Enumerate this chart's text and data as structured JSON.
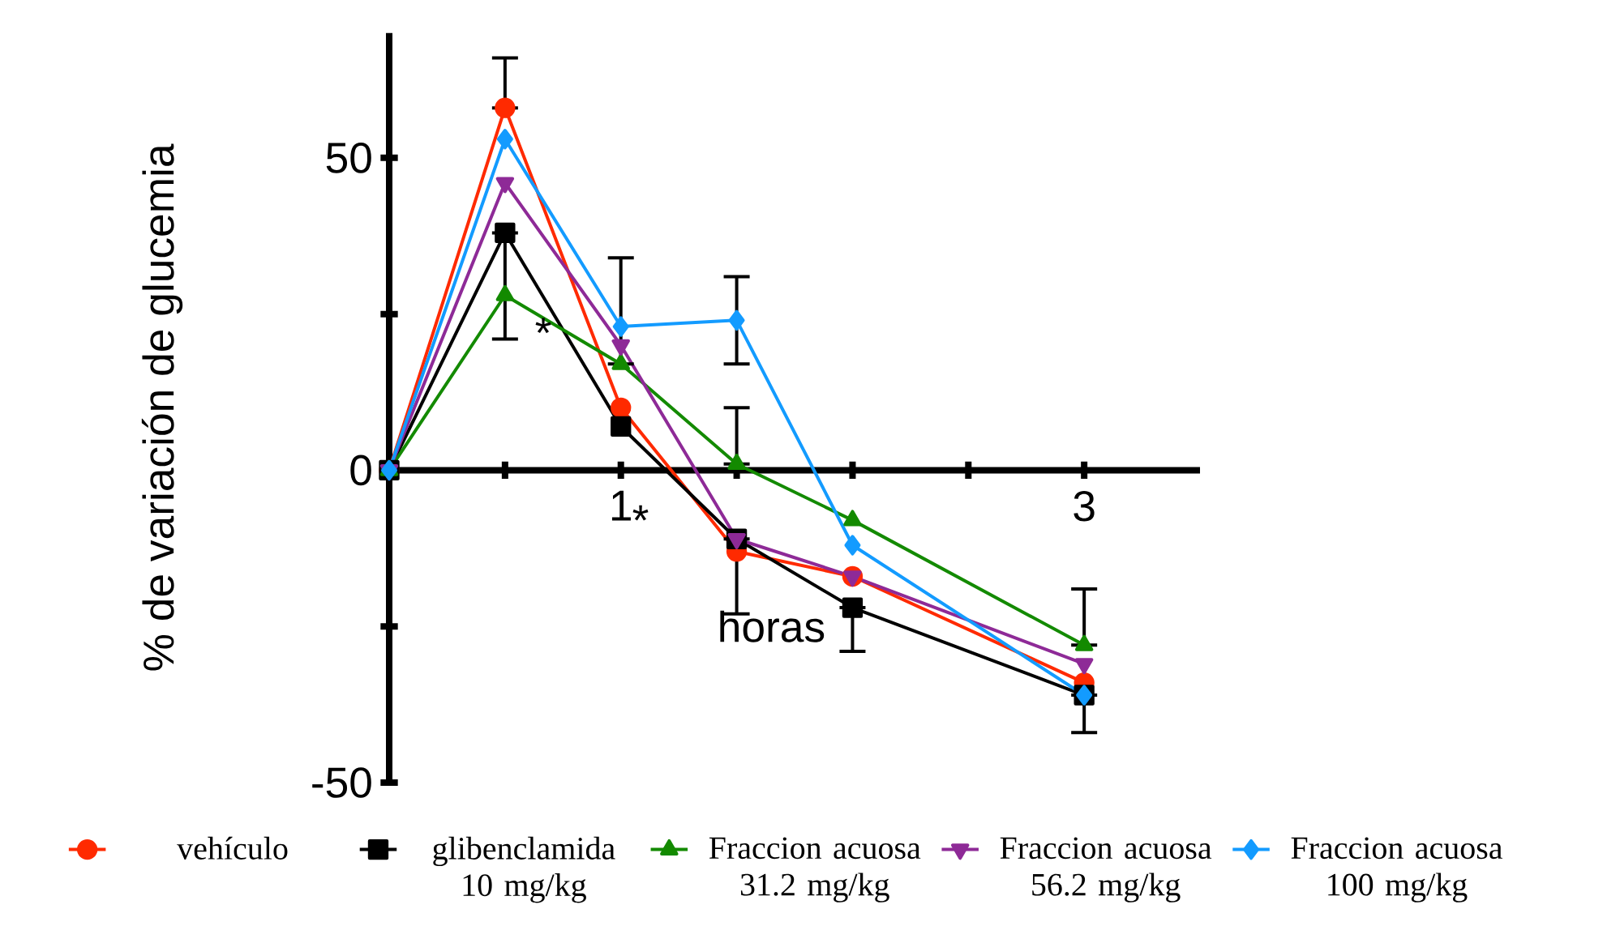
{
  "chart_data": {
    "type": "line",
    "xlabel": "horas",
    "ylabel": "% de variación de glucemia",
    "x": [
      0,
      0.5,
      1,
      1.5,
      2,
      3
    ],
    "xlim": [
      0,
      3.5
    ],
    "ylim": [
      -50,
      70
    ],
    "xticks": [
      {
        "value": 0.5,
        "label": null
      },
      1,
      {
        "value": 1.5,
        "label": null
      },
      {
        "value": 2,
        "label": null
      },
      {
        "value": 2.5,
        "label": null
      },
      3
    ],
    "yticks": [
      -50,
      {
        "value": -25,
        "label": null
      },
      0,
      {
        "value": 25,
        "label": null
      },
      50
    ],
    "legend": "bottom",
    "grid": false,
    "series": [
      {
        "name": "vehículo",
        "color": "#ff2a00",
        "marker": "circle",
        "values": [
          0,
          58,
          10,
          -13,
          -17,
          -34
        ],
        "errors": [
          null,
          [
            58,
            66
          ],
          null,
          null,
          null,
          null
        ]
      },
      {
        "name": "glibenclamida 10 mg/kg",
        "color": "#000000",
        "marker": "square",
        "values": [
          0,
          38,
          7,
          -11,
          -22,
          -36
        ],
        "errors": [
          null,
          [
            21,
            38
          ],
          null,
          [
            -23,
            -11
          ],
          [
            -29,
            -22
          ],
          [
            -42,
            -36
          ]
        ]
      },
      {
        "name": "Fraccion acuosa 31.2 mg/kg",
        "color": "#138a00",
        "marker": "triangle",
        "values": [
          0,
          28,
          17,
          1,
          -8,
          -28
        ],
        "errors": [
          null,
          null,
          [
            17,
            34
          ],
          [
            1,
            10
          ],
          null,
          [
            -28,
            -19
          ]
        ]
      },
      {
        "name": "Fraccion acuosa 56.2 mg/kg",
        "color": "#8e2a97",
        "marker": "triangle-down",
        "values": [
          0,
          46,
          20,
          -11,
          -17,
          -31
        ]
      },
      {
        "name": "Fraccion acuosa 100 mg/kg",
        "color": "#139bff",
        "marker": "diamond",
        "values": [
          0,
          53,
          23,
          24,
          -12,
          -36
        ],
        "errors": [
          null,
          null,
          null,
          [
            17,
            31
          ],
          null,
          null
        ]
      }
    ],
    "annotations": [
      "*",
      "*"
    ]
  }
}
